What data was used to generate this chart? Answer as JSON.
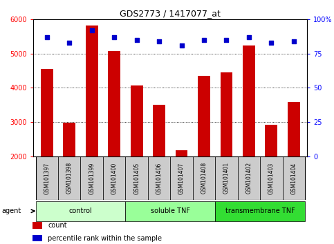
{
  "title": "GDS2773 / 1417077_at",
  "samples": [
    "GSM101397",
    "GSM101398",
    "GSM101399",
    "GSM101400",
    "GSM101405",
    "GSM101406",
    "GSM101407",
    "GSM101408",
    "GSM101401",
    "GSM101402",
    "GSM101403",
    "GSM101404"
  ],
  "counts": [
    4550,
    2980,
    5830,
    5080,
    4060,
    3500,
    2180,
    4360,
    4460,
    5230,
    2920,
    3580
  ],
  "percentiles": [
    87,
    83,
    92,
    87,
    85,
    84,
    81,
    85,
    85,
    87,
    83,
    84
  ],
  "bar_color": "#cc0000",
  "dot_color": "#0000cc",
  "ylim_left": [
    2000,
    6000
  ],
  "ylim_right": [
    0,
    100
  ],
  "yticks_left": [
    2000,
    3000,
    4000,
    5000,
    6000
  ],
  "yticks_right": [
    0,
    25,
    50,
    75,
    100
  ],
  "groups": [
    {
      "label": "control",
      "start": 0,
      "end": 4,
      "color": "#ccffcc"
    },
    {
      "label": "soluble TNF",
      "start": 4,
      "end": 8,
      "color": "#99ff99"
    },
    {
      "label": "transmembrane TNF",
      "start": 8,
      "end": 12,
      "color": "#33dd33"
    }
  ],
  "agent_label": "agent",
  "legend_items": [
    {
      "color": "#cc0000",
      "label": "count"
    },
    {
      "color": "#0000cc",
      "label": "percentile rank within the sample"
    }
  ],
  "bg_color": "#ffffff",
  "tick_cell_bg": "#cccccc",
  "tick_cell_border": "#999999"
}
